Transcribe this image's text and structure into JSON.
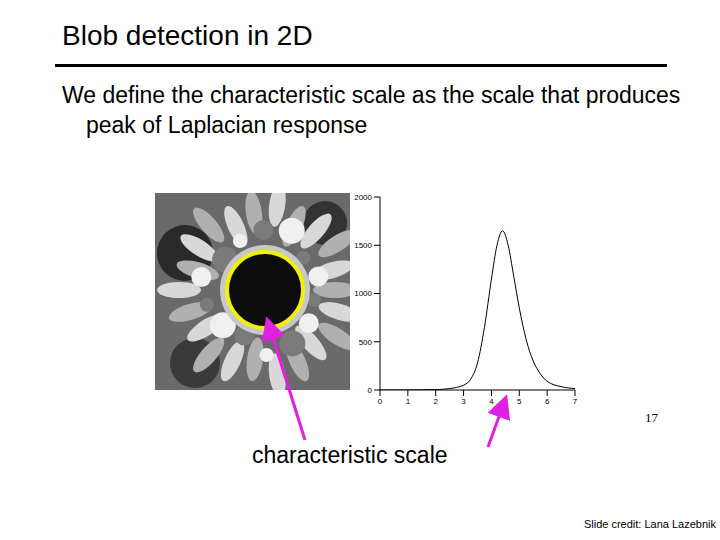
{
  "chart_data": {
    "type": "line",
    "title": "Blob detection in 2D",
    "subtitle": "We define the characteristic scale as the scale that produces peak of Laplacian response",
    "annotations": [
      "characteristic scale",
      "17",
      "Slide credit: Lana Lazebnik"
    ],
    "x": [
      0,
      0.5,
      1,
      1.5,
      2,
      2.5,
      3,
      3.25,
      3.5,
      3.75,
      4,
      4.2,
      4.4,
      4.6,
      4.8,
      5,
      5.25,
      5.5,
      5.75,
      6,
      6.5,
      7
    ],
    "values": [
      0,
      0,
      1,
      2,
      4,
      15,
      50,
      110,
      280,
      650,
      1150,
      1500,
      1650,
      1500,
      1180,
      850,
      520,
      300,
      170,
      90,
      35,
      15
    ],
    "color": "#000000",
    "xlim": [
      0,
      7
    ],
    "xticks": [
      0,
      1,
      2,
      3,
      4,
      5,
      6,
      7
    ],
    "ylim": [
      0,
      2000
    ],
    "yticks": [
      0,
      500,
      1000,
      1500,
      2000
    ],
    "grid": false
  }
}
